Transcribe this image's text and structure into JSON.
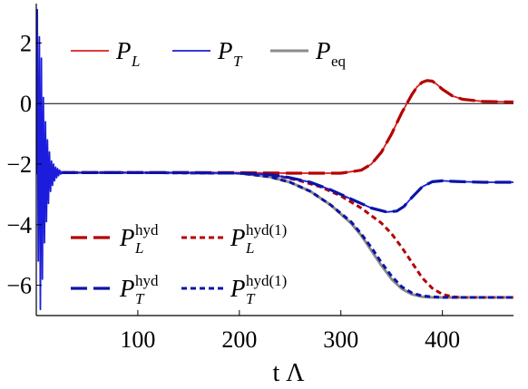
{
  "chart_data": {
    "type": "line",
    "xlabel": "t Λ",
    "ylabel": "",
    "xlim": [
      0,
      470
    ],
    "ylim": [
      -7,
      3.3
    ],
    "x_ticks": [
      100,
      200,
      300,
      400
    ],
    "y_ticks": [
      -6,
      -4,
      -2,
      0,
      2
    ],
    "x_tick_labels": [
      "100",
      "200",
      "300",
      "400"
    ],
    "y_tick_labels": [
      "−6",
      "−4",
      "−2",
      "0",
      "2"
    ],
    "reference_line_y": 0,
    "colors": {
      "red": "#d62020",
      "blue": "#1c1cdc",
      "gray": "#8a8a8a",
      "dark_red": "#b40000",
      "dark_blue": "#0a14a8"
    },
    "series": [
      {
        "name": "P_L",
        "label_main": "P",
        "label_sub": "L",
        "label_sup": "",
        "color": "#d62020",
        "style": "solid",
        "width": 1.8,
        "x": [
          0,
          25,
          50,
          100,
          150,
          200,
          250,
          300,
          320,
          330,
          340,
          350,
          360,
          370,
          375,
          380,
          385,
          390,
          395,
          400,
          410,
          420,
          440,
          470
        ],
        "y": [
          -2.28,
          -2.28,
          -2.28,
          -2.28,
          -2.28,
          -2.28,
          -2.3,
          -2.3,
          -2.2,
          -2.0,
          -1.6,
          -1.0,
          -0.3,
          0.3,
          0.55,
          0.7,
          0.76,
          0.74,
          0.62,
          0.47,
          0.25,
          0.14,
          0.07,
          0.05
        ]
      },
      {
        "name": "P_T",
        "label_main": "P",
        "label_sub": "T",
        "label_sup": "",
        "color": "#1c1cdc",
        "style": "solid",
        "width": 1.8,
        "x": [
          0,
          25,
          50,
          100,
          150,
          200,
          230,
          250,
          270,
          290,
          310,
          330,
          345,
          355,
          362,
          370,
          380,
          390,
          400,
          410,
          420,
          440,
          470
        ],
        "y": [
          -2.28,
          -2.28,
          -2.28,
          -2.28,
          -2.28,
          -2.3,
          -2.35,
          -2.45,
          -2.6,
          -2.85,
          -3.15,
          -3.45,
          -3.58,
          -3.55,
          -3.4,
          -3.1,
          -2.75,
          -2.58,
          -2.55,
          -2.57,
          -2.58,
          -2.6,
          -2.6
        ]
      },
      {
        "name": "P_eq",
        "label_main": "P",
        "label_sub": "eq",
        "label_sup": "",
        "color": "#8a8a8a",
        "style": "solid",
        "width": 3.0,
        "x": [
          0,
          100,
          200,
          230,
          250,
          270,
          290,
          310,
          320,
          330,
          340,
          350,
          360,
          370,
          380,
          390,
          400,
          410,
          420,
          440,
          470
        ],
        "y": [
          -2.28,
          -2.28,
          -2.3,
          -2.42,
          -2.6,
          -2.9,
          -3.35,
          -3.95,
          -4.35,
          -4.85,
          -5.35,
          -5.8,
          -6.12,
          -6.3,
          -6.38,
          -6.4,
          -6.4,
          -6.4,
          -6.4,
          -6.4,
          -6.4
        ]
      },
      {
        "name": "P_L^hyd",
        "label_main": "P",
        "label_sub": "L",
        "label_sup": "hyd",
        "color": "#b40000",
        "style": "long-dash",
        "width": 3.2,
        "x": [
          0,
          25,
          50,
          100,
          150,
          200,
          250,
          300,
          320,
          330,
          340,
          350,
          360,
          370,
          375,
          380,
          385,
          390,
          395,
          400,
          410,
          420,
          440,
          470
        ],
        "y": [
          -2.28,
          -2.28,
          -2.28,
          -2.28,
          -2.28,
          -2.28,
          -2.3,
          -2.3,
          -2.2,
          -2.0,
          -1.6,
          -1.0,
          -0.3,
          0.3,
          0.55,
          0.7,
          0.76,
          0.74,
          0.62,
          0.47,
          0.25,
          0.14,
          0.07,
          0.05
        ]
      },
      {
        "name": "P_T^hyd",
        "label_main": "P",
        "label_sub": "T",
        "label_sup": "hyd",
        "color": "#0a14a8",
        "style": "long-dash",
        "width": 3.2,
        "x": [
          0,
          25,
          50,
          100,
          150,
          200,
          230,
          250,
          270,
          290,
          310,
          330,
          345,
          355,
          362,
          370,
          380,
          390,
          400,
          410,
          420,
          440,
          470
        ],
        "y": [
          -2.28,
          -2.28,
          -2.28,
          -2.28,
          -2.28,
          -2.3,
          -2.35,
          -2.45,
          -2.6,
          -2.85,
          -3.15,
          -3.45,
          -3.58,
          -3.55,
          -3.4,
          -3.1,
          -2.75,
          -2.58,
          -2.55,
          -2.57,
          -2.58,
          -2.6,
          -2.6
        ]
      },
      {
        "name": "P_L^hyd(1)",
        "label_main": "P",
        "label_sub": "L",
        "label_sup": "hyd(1)",
        "color": "#b40000",
        "style": "short-dash",
        "width": 3.0,
        "x": [
          0,
          100,
          200,
          240,
          260,
          280,
          300,
          320,
          340,
          350,
          360,
          370,
          380,
          390,
          400,
          410,
          420,
          440,
          470
        ],
        "y": [
          -2.28,
          -2.28,
          -2.3,
          -2.4,
          -2.55,
          -2.75,
          -3.05,
          -3.45,
          -3.95,
          -4.3,
          -4.75,
          -5.25,
          -5.75,
          -6.1,
          -6.3,
          -6.38,
          -6.4,
          -6.4,
          -6.4
        ]
      },
      {
        "name": "P_T^hyd(1)",
        "label_main": "P",
        "label_sub": "T",
        "label_sup": "hyd(1)",
        "color": "#0a14a8",
        "style": "short-dash",
        "width": 3.0,
        "x": [
          0,
          100,
          200,
          230,
          250,
          270,
          290,
          310,
          320,
          330,
          340,
          350,
          360,
          370,
          380,
          390,
          400,
          410,
          420,
          440,
          470
        ],
        "y": [
          -2.28,
          -2.28,
          -2.3,
          -2.42,
          -2.6,
          -2.9,
          -3.35,
          -3.9,
          -4.3,
          -4.75,
          -5.25,
          -5.7,
          -6.05,
          -6.25,
          -6.35,
          -6.38,
          -6.4,
          -6.4,
          -6.4,
          -6.4,
          -6.4
        ]
      }
    ],
    "oscillation": {
      "series": "P_T",
      "color": "#1c1cdc",
      "x": [
        0,
        1,
        2,
        3,
        4,
        5,
        6,
        7,
        8,
        9,
        10,
        11,
        12,
        13,
        14,
        15,
        16,
        17,
        18,
        19,
        20,
        21,
        22,
        23,
        24,
        25,
        26
      ],
      "y": [
        -2.3,
        3.1,
        -5.2,
        2.2,
        -6.8,
        1.5,
        -5.8,
        0.2,
        -4.6,
        -0.6,
        -3.9,
        -1.2,
        -3.3,
        -1.6,
        -2.9,
        -1.9,
        -2.7,
        -2.0,
        -2.55,
        -2.1,
        -2.45,
        -2.15,
        -2.38,
        -2.2,
        -2.33,
        -2.26,
        -2.28
      ]
    }
  }
}
